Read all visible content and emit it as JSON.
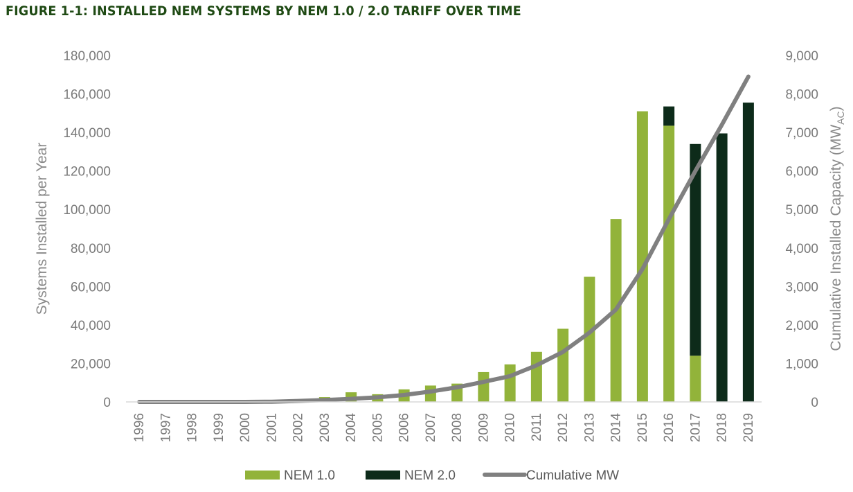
{
  "figure": {
    "title": "FIGURE 1-1: INSTALLED NEM SYSTEMS BY NEM 1.0 / 2.0 TARIFF OVER TIME"
  },
  "chart_data": {
    "type": "bar",
    "stacked": true,
    "categories": [
      "1996",
      "1997",
      "1998",
      "1999",
      "2000",
      "2001",
      "2002",
      "2003",
      "2004",
      "2005",
      "2006",
      "2007",
      "2008",
      "2009",
      "2010",
      "2011",
      "2012",
      "2013",
      "2014",
      "2015",
      "2016",
      "2017",
      "2018",
      "2019"
    ],
    "series": [
      {
        "name": "NEM 1.0",
        "axis": "left",
        "color": "#92b33a",
        "values": [
          0,
          0,
          0,
          0,
          0,
          0,
          0,
          2500,
          5000,
          4000,
          6500,
          8500,
          9500,
          15500,
          19500,
          26000,
          38000,
          65000,
          95000,
          151000,
          143500,
          24000,
          0,
          0
        ]
      },
      {
        "name": "NEM 2.0",
        "axis": "left",
        "color": "#0d2b1a",
        "values": [
          0,
          0,
          0,
          0,
          0,
          0,
          0,
          0,
          0,
          0,
          0,
          0,
          0,
          0,
          0,
          0,
          0,
          0,
          0,
          0,
          10000,
          110000,
          139500,
          155500
        ]
      },
      {
        "name": "Cumulative MW",
        "type": "line",
        "axis": "right",
        "color": "#808080",
        "values": [
          0,
          0,
          0,
          0,
          0,
          5,
          25,
          50,
          80,
          120,
          180,
          270,
          380,
          520,
          670,
          950,
          1300,
          1800,
          2400,
          3450,
          4750,
          6000,
          7200,
          8450
        ]
      }
    ],
    "y_left": {
      "label": "Systems Installed per Year",
      "lim": [
        0,
        180000
      ],
      "ticks": [
        0,
        20000,
        40000,
        60000,
        80000,
        100000,
        120000,
        140000,
        160000,
        180000
      ],
      "tick_labels": [
        "0",
        "20,000",
        "40,000",
        "60,000",
        "80,000",
        "100,000",
        "120,000",
        "140,000",
        "160,000",
        "180,000"
      ]
    },
    "y_right": {
      "label": "Cumulative Installed Capacity (MW",
      "label_sub": "AC",
      "label_end": ")",
      "lim": [
        0,
        9000
      ],
      "ticks": [
        0,
        1000,
        2000,
        3000,
        4000,
        5000,
        6000,
        7000,
        8000,
        9000
      ],
      "tick_labels": [
        "0",
        "1,000",
        "2,000",
        "3,000",
        "4,000",
        "5,000",
        "6,000",
        "7,000",
        "8,000",
        "9,000"
      ]
    },
    "legend": {
      "position": "bottom",
      "entries": [
        "NEM 1.0",
        "NEM 2.0",
        "Cumulative MW"
      ]
    }
  }
}
